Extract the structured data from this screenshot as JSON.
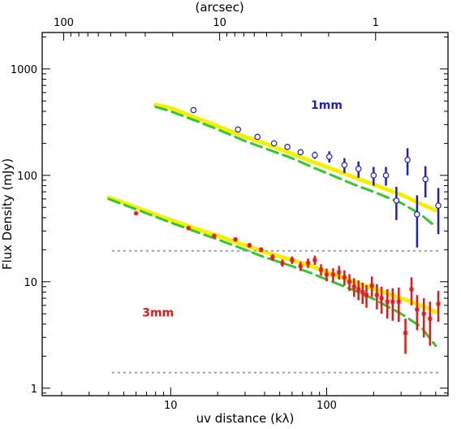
{
  "chart_data": {
    "type": "scatter",
    "xlabel": "uv distance (kλ)",
    "ylabel": "Flux Density (mJy)",
    "top_xlabel": "(arcsec)",
    "xscale": "log",
    "yscale": "log",
    "xlim": [
      1.5,
      600
    ],
    "ylim": [
      0.85,
      2200
    ],
    "top_ticks": [
      {
        "label": "100",
        "x": 2.06
      },
      {
        "label": "10",
        "x": 20.6
      },
      {
        "label": "1",
        "x": 206
      }
    ],
    "x_tick_labels": [
      {
        "label": "10",
        "x": 10
      },
      {
        "label": "100",
        "x": 100
      }
    ],
    "y_tick_labels": [
      {
        "label": "1",
        "y": 1
      },
      {
        "label": "10",
        "y": 10
      },
      {
        "label": "100",
        "y": 100
      },
      {
        "label": "1000",
        "y": 1000
      }
    ],
    "annotations": [
      {
        "text": "1mm",
        "x": 100,
        "y": 420,
        "color": "#1f1fd0"
      },
      {
        "text": "3mm",
        "x": 8.3,
        "y": 4.7,
        "color": "#e81818"
      }
    ],
    "reference_lines": [
      {
        "y": 19.5,
        "x": [
          4.2,
          520
        ],
        "color": "#a0a0a0",
        "style": "dotted"
      },
      {
        "y": 1.4,
        "x": [
          4.2,
          520
        ],
        "color": "#a0a0a0",
        "style": "dotted"
      }
    ],
    "series": [
      {
        "kind": "model",
        "style": "solid",
        "color": "#f5f000",
        "x": [
          8,
          10,
          15,
          20,
          30,
          40,
          60,
          80,
          100,
          150,
          200,
          300,
          400,
          500
        ],
        "y": [
          460,
          430,
          340,
          290,
          230,
          200,
          160,
          135,
          120,
          96,
          82,
          66,
          54,
          47
        ]
      },
      {
        "kind": "model",
        "style": "dashed",
        "color": "#2fc82f",
        "x": [
          8,
          10,
          15,
          20,
          30,
          40,
          60,
          80,
          100,
          150,
          200,
          300,
          400,
          500
        ],
        "y": [
          440,
          400,
          320,
          270,
          210,
          180,
          145,
          120,
          105,
          82,
          70,
          55,
          43,
          33
        ]
      },
      {
        "kind": "model",
        "style": "solid",
        "color": "#f5f000",
        "x": [
          4,
          6,
          10,
          15,
          20,
          30,
          40,
          60,
          80,
          100,
          150,
          200,
          300,
          400,
          500
        ],
        "y": [
          62,
          50,
          38,
          31,
          27,
          22,
          19,
          16,
          14,
          12.3,
          10,
          8.6,
          7,
          6,
          5.2
        ]
      },
      {
        "kind": "model",
        "style": "dashed",
        "color": "#2fc82f",
        "x": [
          4,
          6,
          10,
          15,
          20,
          30,
          40,
          60,
          80,
          100,
          150,
          200,
          300,
          400,
          500
        ],
        "y": [
          60,
          48,
          36,
          29,
          25,
          20,
          17,
          14,
          12,
          10.5,
          8.3,
          6.9,
          5,
          3.8,
          2.5
        ]
      },
      {
        "kind": "observed",
        "marker": "circle",
        "color": "#1f1fd0",
        "x": [
          14,
          27,
          36,
          46,
          56,
          68,
          84,
          104,
          130,
          160,
          200,
          240,
          280,
          330,
          380,
          430,
          520
        ],
        "y": [
          410,
          270,
          230,
          200,
          185,
          165,
          155,
          150,
          125,
          115,
          100,
          100,
          58,
          140,
          43,
          92,
          52
        ],
        "err": [
          8,
          8,
          8,
          8,
          9,
          10,
          12,
          18,
          20,
          20,
          20,
          20,
          20,
          40,
          22,
          30,
          24
        ]
      },
      {
        "kind": "observed",
        "marker": "asterisk",
        "color": "#e81818",
        "x": [
          6,
          13,
          19,
          26,
          32,
          38,
          45,
          52,
          60,
          68,
          76,
          84,
          92,
          100,
          110,
          120,
          130,
          140,
          150,
          160,
          170,
          180,
          195,
          210,
          225,
          245,
          265,
          290,
          320,
          350,
          380,
          420,
          460,
          520
        ],
        "y": [
          44,
          32,
          27,
          25,
          22,
          20,
          17,
          15,
          16,
          14,
          15,
          16,
          13,
          11.7,
          11.7,
          12.3,
          11,
          10,
          9,
          8.5,
          8,
          7.5,
          9.2,
          7.5,
          7,
          6.5,
          6.5,
          6.5,
          3.3,
          8.5,
          5.5,
          5,
          4.5,
          6.2
        ],
        "err": [
          1,
          1,
          1,
          1,
          1,
          1,
          1.2,
          1.2,
          1.3,
          1.4,
          1.5,
          1.6,
          1.6,
          1.6,
          1.7,
          1.8,
          1.8,
          1.8,
          1.8,
          1.8,
          1.8,
          1.8,
          2,
          2,
          2,
          2,
          2.2,
          2.3,
          1.2,
          2.5,
          2,
          2,
          2,
          2
        ]
      }
    ]
  }
}
